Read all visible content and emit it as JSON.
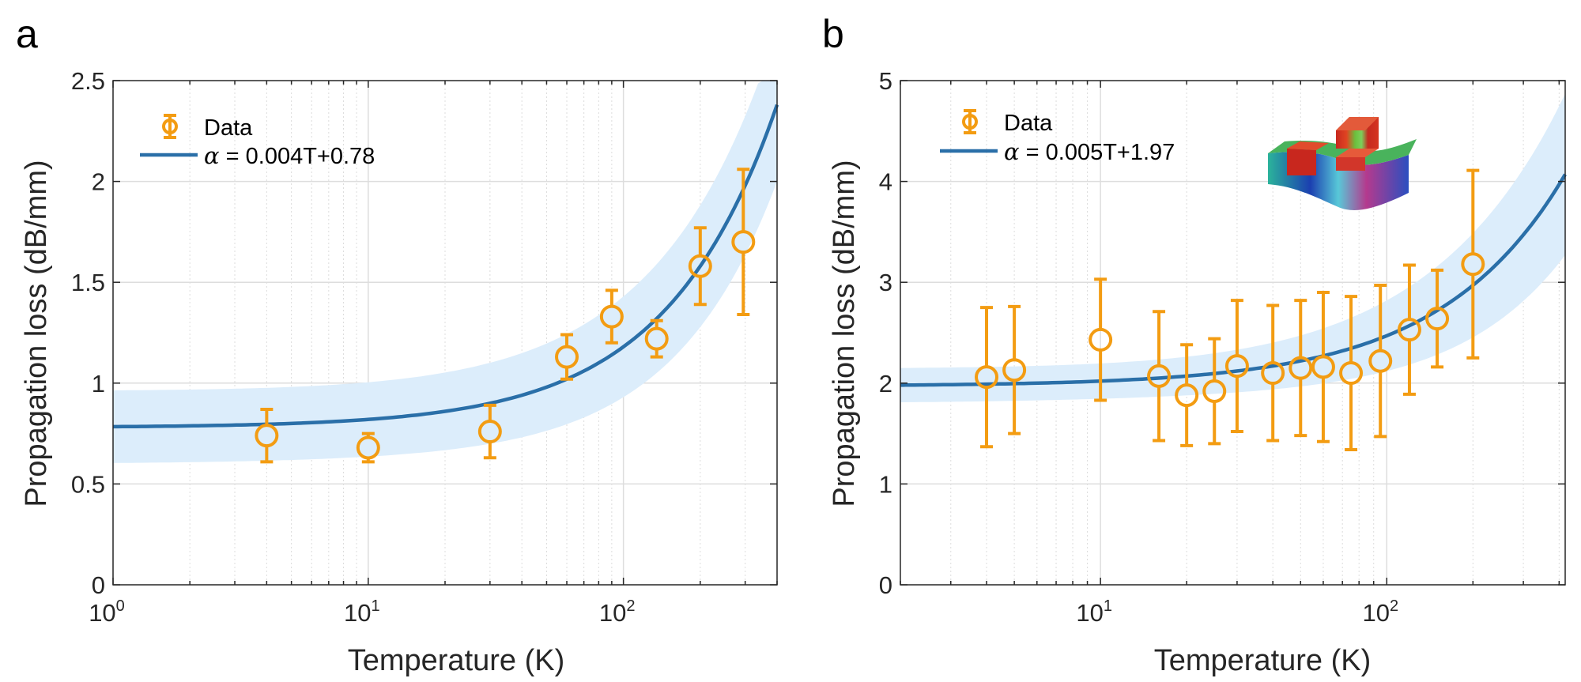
{
  "chart_data": [
    {
      "panel": "a",
      "type": "scatter",
      "xscale": "log",
      "xlim": [
        1,
        400
      ],
      "ylim": [
        0,
        2.5
      ],
      "xlabel": "Temperature (K)",
      "ylabel": "Propagation loss (dB/mm)",
      "x_ticks": [
        {
          "base": "10",
          "exp": "0",
          "value": 1
        },
        {
          "base": "10",
          "exp": "1",
          "value": 10
        },
        {
          "base": "10",
          "exp": "2",
          "value": 100
        }
      ],
      "y_ticks": [
        "0",
        "0.5",
        "1",
        "1.5",
        "2",
        "2.5"
      ],
      "grid": true,
      "legend_position": "top-left",
      "legend": {
        "data_label": "Data",
        "fit_symbol": "α",
        "fit_label": " = 0.004T+0.78"
      },
      "fit": {
        "slope": 0.004,
        "intercept": 0.78,
        "band_start": 0.18,
        "band_end": 0.38
      },
      "series": [
        {
          "name": "Data",
          "x": [
            4,
            10,
            30,
            60,
            90,
            135,
            200,
            295
          ],
          "y": [
            0.74,
            0.68,
            0.76,
            1.13,
            1.33,
            1.22,
            1.58,
            1.7
          ],
          "err": [
            0.13,
            0.07,
            0.13,
            0.11,
            0.13,
            0.09,
            0.19,
            0.36
          ]
        }
      ]
    },
    {
      "panel": "b",
      "type": "scatter",
      "xscale": "log",
      "xlim": [
        2,
        420
      ],
      "ylim": [
        0,
        5
      ],
      "xlabel": "Temperature (K)",
      "ylabel": "Propagation loss (dB/mm)",
      "x_ticks": [
        {
          "base": "10",
          "exp": "1",
          "value": 10
        },
        {
          "base": "10",
          "exp": "2",
          "value": 100
        }
      ],
      "y_ticks": [
        "0",
        "1",
        "2",
        "3",
        "4",
        "5"
      ],
      "grid": true,
      "legend_position": "top-left",
      "legend": {
        "data_label": "Data",
        "fit_symbol": "α",
        "fit_label": " = 0.005T+1.97"
      },
      "fit": {
        "slope": 0.005,
        "intercept": 1.97,
        "band_start": 0.17,
        "band_end": 0.8
      },
      "inset": "simulated-mode-profile",
      "series": [
        {
          "name": "Data",
          "x": [
            4,
            5,
            10,
            16,
            20,
            25,
            30,
            40,
            50,
            60,
            75,
            95,
            120,
            150,
            200
          ],
          "y": [
            2.06,
            2.13,
            2.43,
            2.07,
            1.88,
            1.92,
            2.17,
            2.1,
            2.15,
            2.16,
            2.1,
            2.22,
            2.53,
            2.64,
            3.18
          ],
          "err": [
            0.69,
            0.63,
            0.6,
            0.64,
            0.5,
            0.52,
            0.65,
            0.67,
            0.67,
            0.74,
            0.76,
            0.75,
            0.64,
            0.48,
            0.93
          ]
        }
      ]
    }
  ]
}
